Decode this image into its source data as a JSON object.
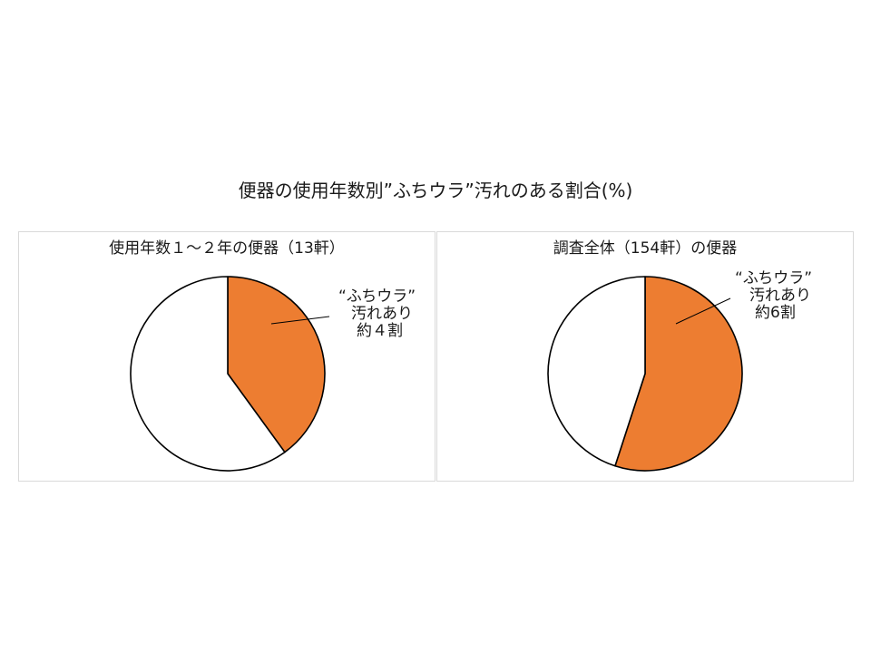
{
  "title": "便器の使用年数別”ふちウラ”汚れのある割合(%)",
  "colors": {
    "accent": "#ed7d31",
    "remainder": "#ffffff",
    "outline": "#000000",
    "frame": "#d9d9d9"
  },
  "chart_data": [
    {
      "type": "pie",
      "title": "使用年数１～２年の便器（13軒）",
      "slices": [
        {
          "label": "“ふちウラ” 汚れあり 約４割",
          "value": 40,
          "color": "#ed7d31"
        },
        {
          "label": "",
          "value": 60,
          "color": "#ffffff"
        }
      ],
      "annotation": [
        "“ふちウラ”",
        "汚れあり",
        "約４割"
      ]
    },
    {
      "type": "pie",
      "title": "調査全体（154軒）の便器",
      "slices": [
        {
          "label": "“ふちウラ” 汚れあり 約6割",
          "value": 55,
          "color": "#ed7d31"
        },
        {
          "label": "",
          "value": 45,
          "color": "#ffffff"
        }
      ],
      "annotation": [
        "“ふちウラ”",
        "汚れあり",
        "約6割"
      ]
    }
  ]
}
